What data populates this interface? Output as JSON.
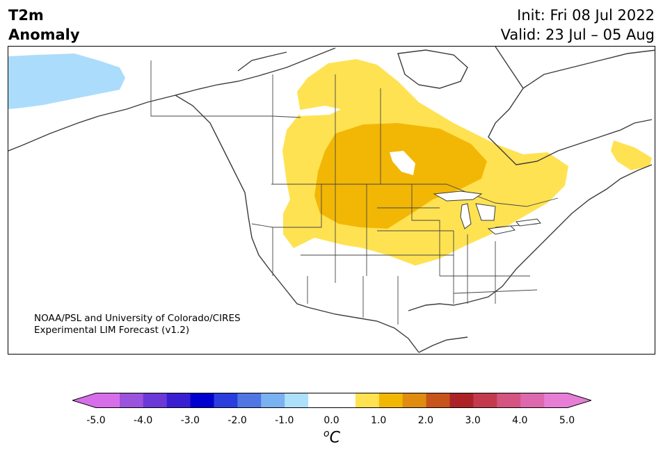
{
  "header": {
    "left_line1": "T2m",
    "left_line2": "Anomaly",
    "right_line1": "Init: Fri 08 Jul 2022",
    "right_line2": "Valid: 23 Jul – 05 Aug"
  },
  "credit": {
    "line1": "NOAA/PSL and University of Colorado/CIRES",
    "line2": "Experimental LIM Forecast (v1.2)"
  },
  "colorbar": {
    "ticks": [
      "-5.0",
      "-4.0",
      "-3.0",
      "-2.0",
      "-1.0",
      "0.0",
      "1.0",
      "2.0",
      "3.0",
      "4.0",
      "5.0"
    ],
    "unit_sup": "o",
    "unit_main": "C",
    "colors": [
      "#d66ee9",
      "#9b52dd",
      "#6a39d8",
      "#3a1fd2",
      "#0000cf",
      "#2b3ddc",
      "#4f76e3",
      "#7ab1f0",
      "#ade0fb",
      "#ffffff",
      "#ffffff",
      "#ffe252",
      "#f2b705",
      "#df8c10",
      "#c7541a",
      "#ad2226",
      "#c33a4f",
      "#d35480",
      "#de68ae",
      "#e67ed6"
    ]
  },
  "map": {
    "region": "North America",
    "anomaly_colors": {
      "light_blue": "#acdcfb",
      "light_yellow": "#ffe252",
      "gold": "#f2b705"
    }
  }
}
